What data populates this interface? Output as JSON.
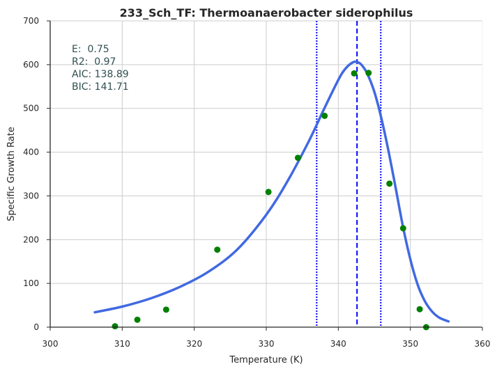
{
  "chart_data": {
    "type": "scatter",
    "title": "233_Sch_TF: Thermoanaerobacter siderophilus",
    "xlabel": "Temperature (K)",
    "ylabel": "Specific Growth Rate",
    "xlim": [
      300,
      360
    ],
    "ylim": [
      0,
      700
    ],
    "xticks": [
      "300",
      "310",
      "320",
      "330",
      "340",
      "350",
      "360"
    ],
    "yticks": [
      "0",
      "100",
      "200",
      "300",
      "400",
      "500",
      "600",
      "700"
    ],
    "grid": true,
    "stats": [
      "E:  0.75",
      "R2:  0.97",
      "AIC: 138.89",
      "BIC: 141.71"
    ],
    "points": {
      "x": [
        309.0,
        312.1,
        316.1,
        323.2,
        330.3,
        334.4,
        338.1,
        342.2,
        344.2,
        347.1,
        349.0,
        351.3,
        352.2
      ],
      "y": [
        2,
        17,
        40,
        177,
        309,
        387,
        483,
        580,
        581,
        328,
        226,
        41,
        0
      ],
      "color": "#008000"
    },
    "fit": {
      "x": [
        306.2,
        310,
        314,
        318,
        322,
        326,
        330,
        333,
        336,
        338,
        340,
        341,
        342,
        342.6,
        343.2,
        344,
        345,
        346,
        347,
        348,
        349,
        350,
        351,
        352,
        353,
        354,
        355.3
      ],
      "y": [
        34,
        47,
        66,
        92,
        127,
        178,
        257,
        335,
        428,
        498,
        565,
        591,
        605,
        606,
        600,
        580,
        538,
        476,
        400,
        315,
        228,
        155,
        98,
        60,
        36,
        22,
        13
      ],
      "color": "#4169e1"
    },
    "vlines": [
      {
        "x": 337.0,
        "style": "dotted",
        "color": "#0000ff"
      },
      {
        "x": 342.6,
        "style": "dashed",
        "color": "#0000ff"
      },
      {
        "x": 345.9,
        "style": "dotted",
        "color": "#0000ff"
      }
    ]
  }
}
